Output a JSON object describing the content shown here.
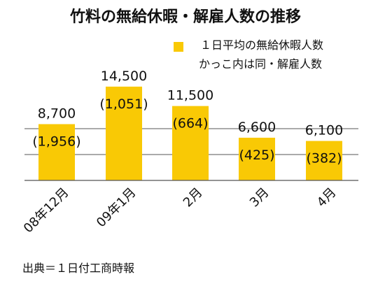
{
  "title": "竹料の無給休暇・解雇人数の推移",
  "legend": {
    "line1": "１日平均の無給休暇人数",
    "line2": "かっこ内は同・解雇人数"
  },
  "source": "出典＝１日付工商時報",
  "colors": {
    "bar": "#f9c905",
    "grid": "#555555"
  },
  "chart_data": {
    "type": "bar",
    "title": "竹料の無給休暇・解雇人数の推移",
    "categories": [
      "08年12月",
      "09年1月",
      "2月",
      "3月",
      "4月"
    ],
    "series": [
      {
        "name": "１日平均の無給休暇人数",
        "values": [
          8700,
          14500,
          11500,
          6600,
          6100
        ],
        "labels": [
          "8,700",
          "14,500",
          "11,500",
          "6,600",
          "6,100"
        ]
      },
      {
        "name": "かっこ内は同・解雇人数",
        "values": [
          1956,
          1051,
          664,
          425,
          382
        ],
        "labels": [
          "(1,956)",
          "(1,051)",
          "(664)",
          "(425)",
          "(382)"
        ]
      }
    ],
    "ylim": [
      0,
      16000
    ],
    "grid": true,
    "legend_position": "top-right"
  }
}
